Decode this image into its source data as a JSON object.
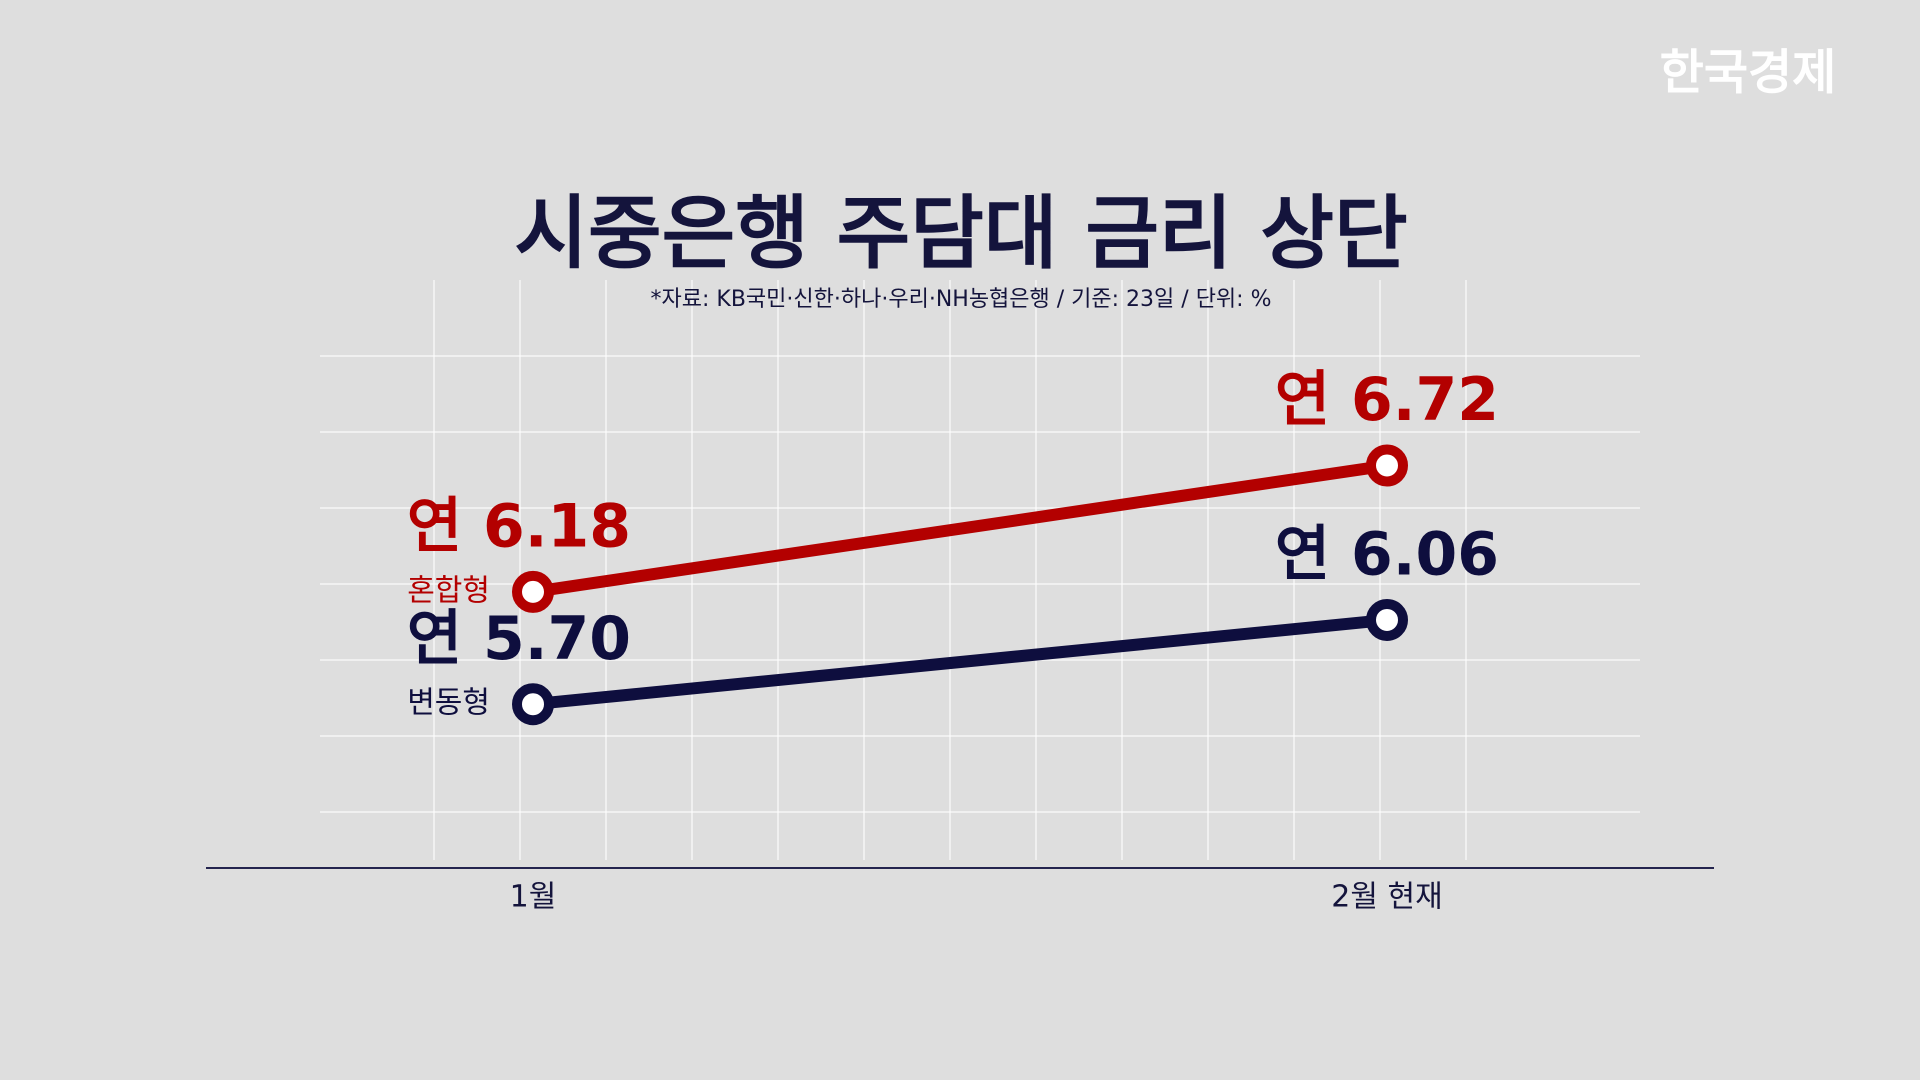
{
  "brand": "한국경제",
  "chart_data": {
    "type": "line",
    "title": "시중은행 주담대 금리 상단",
    "subtitle": "*자료: KB국민·신한·하나·우리·NH농협은행 / 기준: 23일 / 단위: %",
    "categories": [
      "1월",
      "2월 현재"
    ],
    "series": [
      {
        "name": "혼합형",
        "color": "#b30000",
        "values": [
          6.18,
          6.72
        ],
        "value_labels": [
          "연 6.18",
          "연 6.72"
        ]
      },
      {
        "name": "변동형",
        "color": "#0e0e3e",
        "values": [
          5.7,
          6.06
        ],
        "value_labels": [
          "연 5.70",
          "연 6.06"
        ]
      }
    ],
    "ylim": [
      5.0,
      7.0
    ]
  }
}
